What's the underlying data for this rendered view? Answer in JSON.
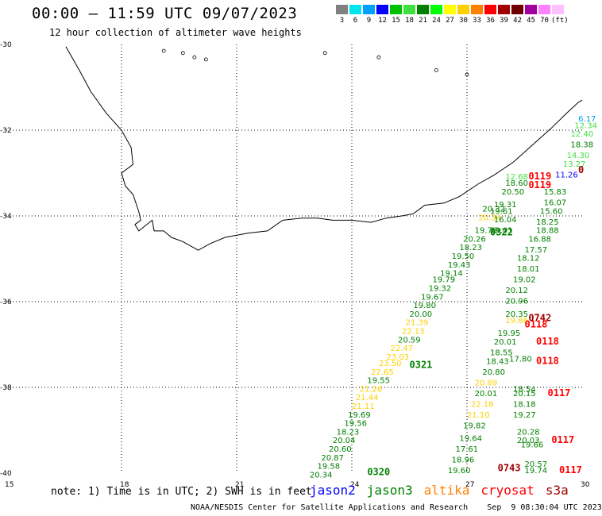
{
  "title": "00:00 – 11:59 UTC 09/07/2023",
  "subtitle": "12 hour collection of altimeter wave heights",
  "legend": {
    "colors": [
      "#808080",
      "#00e5ee",
      "#00a0ff",
      "#0000ff",
      "#00c000",
      "#40e040",
      "#008000",
      "#00ff00",
      "#ffff00",
      "#ffd000",
      "#ff8000",
      "#ff0000",
      "#a00000",
      "#700000",
      "#a000a0",
      "#ff80ff",
      "#ffc0ff"
    ],
    "labels": [
      "3",
      "6",
      "9",
      "12",
      "15",
      "18",
      "21",
      "24",
      "27",
      "30",
      "33",
      "36",
      "39",
      "42",
      "45",
      "70",
      "(ft)"
    ]
  },
  "axes": {
    "lat_labels": [
      "-30",
      "-32",
      "-34",
      "-36",
      "-38",
      "-40"
    ],
    "lon_labels": [
      "15",
      "18",
      "21",
      "24",
      "27",
      "30"
    ]
  },
  "observations": [
    {
      "text": "6.17",
      "color": "#00a0ff",
      "lon": 29.9,
      "lat": -31.8
    },
    {
      "text": "12.34",
      "color": "#40e040",
      "lon": 29.8,
      "lat": -31.95
    },
    {
      "text": "12.40",
      "color": "#40e040",
      "lon": 29.7,
      "lat": -32.15
    },
    {
      "text": "18.38",
      "color": "#008000",
      "lon": 29.7,
      "lat": -32.4
    },
    {
      "text": "14.30",
      "color": "#40e040",
      "lon": 29.6,
      "lat": -32.65
    },
    {
      "text": "13.27",
      "color": "#40e040",
      "lon": 29.5,
      "lat": -32.85
    },
    {
      "text": "11.26",
      "color": "#0000ff",
      "lon": 29.3,
      "lat": -33.1
    },
    {
      "text": "12.68",
      "color": "#40e040",
      "lon": 28.0,
      "lat": -33.15
    },
    {
      "text": "18.60",
      "color": "#008000",
      "lon": 28.0,
      "lat": -33.3
    },
    {
      "text": "20.50",
      "color": "#008000",
      "lon": 27.9,
      "lat": -33.5
    },
    {
      "text": "15.83",
      "color": "#008000",
      "lon": 29.0,
      "lat": -33.5
    },
    {
      "text": "19.31",
      "color": "#008000",
      "lon": 27.7,
      "lat": -33.8
    },
    {
      "text": "16.07",
      "color": "#008000",
      "lon": 29.0,
      "lat": -33.75
    },
    {
      "text": "20.32",
      "color": "#008000",
      "lon": 27.4,
      "lat": -33.9
    },
    {
      "text": "19.61",
      "color": "#008000",
      "lon": 27.6,
      "lat": -33.95
    },
    {
      "text": "15.60",
      "color": "#008000",
      "lon": 28.9,
      "lat": -33.95
    },
    {
      "text": "20.34",
      "color": "#ffd000",
      "lon": 27.3,
      "lat": -34.1
    },
    {
      "text": "16.04",
      "color": "#008000",
      "lon": 27.7,
      "lat": -34.15
    },
    {
      "text": "18.25",
      "color": "#008000",
      "lon": 28.8,
      "lat": -34.2
    },
    {
      "text": "19.78",
      "color": "#008000",
      "lon": 27.2,
      "lat": -34.4
    },
    {
      "text": "19.01",
      "color": "#008000",
      "lon": 27.6,
      "lat": -34.4
    },
    {
      "text": "18.88",
      "color": "#008000",
      "lon": 28.8,
      "lat": -34.4
    },
    {
      "text": "20.26",
      "color": "#008000",
      "lon": 26.9,
      "lat": -34.6
    },
    {
      "text": "16.88",
      "color": "#008000",
      "lon": 28.6,
      "lat": -34.6
    },
    {
      "text": "18.23",
      "color": "#008000",
      "lon": 26.8,
      "lat": -34.8
    },
    {
      "text": "17.57",
      "color": "#008000",
      "lon": 28.5,
      "lat": -34.85
    },
    {
      "text": "19.50",
      "color": "#008000",
      "lon": 26.6,
      "lat": -35.0
    },
    {
      "text": "18.12",
      "color": "#008000",
      "lon": 28.3,
      "lat": -35.05
    },
    {
      "text": "19.43",
      "color": "#008000",
      "lon": 26.5,
      "lat": -35.2
    },
    {
      "text": "18.01",
      "color": "#008000",
      "lon": 28.3,
      "lat": -35.3
    },
    {
      "text": "19.14",
      "color": "#008000",
      "lon": 26.3,
      "lat": -35.4
    },
    {
      "text": "19.02",
      "color": "#008000",
      "lon": 28.2,
      "lat": -35.55
    },
    {
      "text": "19.79",
      "color": "#008000",
      "lon": 26.1,
      "lat": -35.55
    },
    {
      "text": "19.32",
      "color": "#008000",
      "lon": 26.0,
      "lat": -35.75
    },
    {
      "text": "20.12",
      "color": "#008000",
      "lon": 28.0,
      "lat": -35.8
    },
    {
      "text": "19.67",
      "color": "#008000",
      "lon": 25.8,
      "lat": -35.95
    },
    {
      "text": "20.96",
      "color": "#008000",
      "lon": 28.0,
      "lat": -36.05
    },
    {
      "text": "19.80",
      "color": "#008000",
      "lon": 25.6,
      "lat": -36.15
    },
    {
      "text": "20.00",
      "color": "#008000",
      "lon": 25.5,
      "lat": -36.35
    },
    {
      "text": "20.35",
      "color": "#008000",
      "lon": 28.0,
      "lat": -36.35
    },
    {
      "text": "21.39",
      "color": "#ffd000",
      "lon": 25.4,
      "lat": -36.55
    },
    {
      "text": "19.86",
      "color": "#ffd000",
      "lon": 28.0,
      "lat": -36.5
    },
    {
      "text": "22.13",
      "color": "#ffd000",
      "lon": 25.3,
      "lat": -36.75
    },
    {
      "text": "19.95",
      "color": "#008000",
      "lon": 27.8,
      "lat": -36.8
    },
    {
      "text": "20.59",
      "color": "#008000",
      "lon": 25.2,
      "lat": -36.95
    },
    {
      "text": "20.01",
      "color": "#008000",
      "lon": 27.7,
      "lat": -37.0
    },
    {
      "text": "22.47",
      "color": "#ffd000",
      "lon": 25.0,
      "lat": -37.15
    },
    {
      "text": "18.55",
      "color": "#008000",
      "lon": 27.6,
      "lat": -37.25
    },
    {
      "text": "23.03",
      "color": "#ffd000",
      "lon": 24.9,
      "lat": -37.35
    },
    {
      "text": "18.43",
      "color": "#008000",
      "lon": 27.5,
      "lat": -37.45
    },
    {
      "text": "17.80",
      "color": "#008000",
      "lon": 28.1,
      "lat": -37.4
    },
    {
      "text": "23.50",
      "color": "#ffd000",
      "lon": 24.7,
      "lat": -37.5
    },
    {
      "text": "22.65",
      "color": "#ffd000",
      "lon": 24.5,
      "lat": -37.7
    },
    {
      "text": "20.80",
      "color": "#008000",
      "lon": 27.4,
      "lat": -37.7
    },
    {
      "text": "19.55",
      "color": "#008000",
      "lon": 24.4,
      "lat": -37.9
    },
    {
      "text": "20.89",
      "color": "#ffd000",
      "lon": 27.2,
      "lat": -37.95
    },
    {
      "text": "21.26",
      "color": "#ffd000",
      "lon": 24.2,
      "lat": -38.1
    },
    {
      "text": "18.54",
      "color": "#008000",
      "lon": 28.2,
      "lat": -38.1
    },
    {
      "text": "20.01",
      "color": "#008000",
      "lon": 27.2,
      "lat": -38.2
    },
    {
      "text": "20.15",
      "color": "#008000",
      "lon": 28.2,
      "lat": -38.2
    },
    {
      "text": "21.44",
      "color": "#ffd000",
      "lon": 24.1,
      "lat": -38.3
    },
    {
      "text": "22.18",
      "color": "#ffd000",
      "lon": 27.1,
      "lat": -38.45
    },
    {
      "text": "18.18",
      "color": "#008000",
      "lon": 28.2,
      "lat": -38.45
    },
    {
      "text": "21.11",
      "color": "#ffd000",
      "lon": 24.0,
      "lat": -38.5
    },
    {
      "text": "19.27",
      "color": "#008000",
      "lon": 28.2,
      "lat": -38.7
    },
    {
      "text": "19.69",
      "color": "#008000",
      "lon": 23.9,
      "lat": -38.7
    },
    {
      "text": "21.10",
      "color": "#ffd000",
      "lon": 27.0,
      "lat": -38.7
    },
    {
      "text": "19.56",
      "color": "#008000",
      "lon": 23.8,
      "lat": -38.9
    },
    {
      "text": "19.82",
      "color": "#008000",
      "lon": 26.9,
      "lat": -38.95
    },
    {
      "text": "18.23",
      "color": "#008000",
      "lon": 23.6,
      "lat": -39.1
    },
    {
      "text": "20.28",
      "color": "#008000",
      "lon": 28.3,
      "lat": -39.1
    },
    {
      "text": "20.04",
      "color": "#008000",
      "lon": 23.5,
      "lat": -39.3
    },
    {
      "text": "19.64",
      "color": "#008000",
      "lon": 26.8,
      "lat": -39.25
    },
    {
      "text": "20.03",
      "color": "#008000",
      "lon": 28.3,
      "lat": -39.3
    },
    {
      "text": "20.60",
      "color": "#008000",
      "lon": 23.4,
      "lat": -39.5
    },
    {
      "text": "17.61",
      "color": "#008000",
      "lon": 26.7,
      "lat": -39.5
    },
    {
      "text": "19.66",
      "color": "#008000",
      "lon": 28.4,
      "lat": -39.4
    },
    {
      "text": "20.87",
      "color": "#008000",
      "lon": 23.2,
      "lat": -39.7
    },
    {
      "text": "18.96",
      "color": "#008000",
      "lon": 26.6,
      "lat": -39.75
    },
    {
      "text": "19.58",
      "color": "#008000",
      "lon": 23.1,
      "lat": -39.9
    },
    {
      "text": "20.57",
      "color": "#008000",
      "lon": 28.5,
      "lat": -39.85
    },
    {
      "text": "20.34",
      "color": "#008000",
      "lon": 22.9,
      "lat": -40.1
    },
    {
      "text": "19.60",
      "color": "#008000",
      "lon": 26.5,
      "lat": -40.0
    },
    {
      "text": "19.74",
      "color": "#008000",
      "lon": 28.5,
      "lat": -40.0
    }
  ],
  "pass_labels": [
    {
      "text": "0119",
      "color": "#ff0000",
      "lon": 28.6,
      "lat": -33.15
    },
    {
      "text": "0119",
      "color": "#ff0000",
      "lon": 28.6,
      "lat": -33.35
    },
    {
      "text": "0322",
      "color": "#008000",
      "lon": 27.6,
      "lat": -34.45
    },
    {
      "text": "0321",
      "color": "#008000",
      "lon": 25.5,
      "lat": -37.55
    },
    {
      "text": "0742",
      "color": "#a00000",
      "lon": 28.6,
      "lat": -36.45
    },
    {
      "text": "0118",
      "color": "#ff0000",
      "lon": 28.5,
      "lat": -36.6
    },
    {
      "text": "0118",
      "color": "#ff0000",
      "lon": 28.8,
      "lat": -37.0
    },
    {
      "text": "0118",
      "color": "#ff0000",
      "lon": 28.8,
      "lat": -37.45
    },
    {
      "text": "0117",
      "color": "#ff0000",
      "lon": 29.1,
      "lat": -38.2
    },
    {
      "text": "0117",
      "color": "#ff0000",
      "lon": 29.2,
      "lat": -39.3
    },
    {
      "text": "0743",
      "color": "#a00000",
      "lon": 27.8,
      "lat": -39.95
    },
    {
      "text": "0117",
      "color": "#ff0000",
      "lon": 29.4,
      "lat": -40.0
    },
    {
      "text": "0320",
      "color": "#008000",
      "lon": 24.4,
      "lat": -40.05
    },
    {
      "text": "0",
      "color": "#a00000",
      "lon": 30.0,
      "lat": -33.0
    }
  ],
  "note": "note: 1) Time is in UTC; 2) SWH is in feet",
  "satellites": [
    {
      "name": "jason2",
      "color": "#0000ff"
    },
    {
      "name": "jason3",
      "color": "#008000"
    },
    {
      "name": "altika",
      "color": "#ff8000"
    },
    {
      "name": "cryosat",
      "color": "#ff0000"
    },
    {
      "name": "s3a",
      "color": "#a00000"
    }
  ],
  "credit": "NOAA/NESDIS Center for Satellite Applications and Research    Sep  9 08:30:04 UTC 2023"
}
